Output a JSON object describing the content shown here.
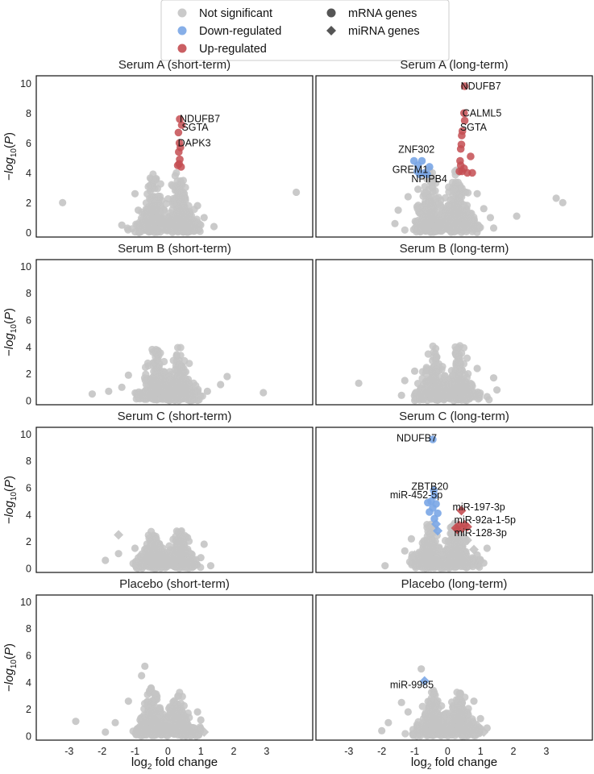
{
  "chart_data": {
    "type": "scatter",
    "description_kind": "volcano plot grid",
    "xlabel": "log2 fold change",
    "ylabel": "−log10(P)",
    "xlim": [
      -4,
      4.4
    ],
    "ylim": [
      -0.3,
      10.5
    ],
    "xticks": [
      -3,
      -2,
      -1,
      0,
      1,
      2,
      3
    ],
    "yticks": [
      0,
      2,
      4,
      6,
      8,
      10
    ],
    "colors": {
      "not_significant": "#c4c4c4",
      "down": "#7aa6e6",
      "up": "#c44e52"
    },
    "legend": {
      "placement": "top-center",
      "entries": [
        {
          "label": "Not significant",
          "kind": "color",
          "color": "#c4c4c4"
        },
        {
          "label": "Down-regulated",
          "kind": "color",
          "color": "#7aa6e6"
        },
        {
          "label": "Up-regulated",
          "kind": "color",
          "color": "#c44e52"
        },
        {
          "label": "mRNA genes",
          "kind": "marker",
          "marker": "circle"
        },
        {
          "label": "miRNA genes",
          "kind": "marker",
          "marker": "diamond"
        }
      ]
    },
    "panels": [
      {
        "title": "Serum A (short-term)",
        "cloud": {
          "left_center": -0.45,
          "right_center": 0.35,
          "ymax": 4.0,
          "spread": 0.8
        },
        "outliers": [
          [
            -3.2,
            2.0
          ],
          [
            -1.0,
            2.6
          ],
          [
            -0.9,
            1.5
          ],
          [
            3.9,
            2.7
          ],
          [
            1.1,
            1.0
          ],
          [
            -1.4,
            0.5
          ],
          [
            0.9,
            1.8
          ],
          [
            1.4,
            0.4
          ],
          [
            -0.6,
            0.2
          ],
          [
            0.6,
            0.3
          ]
        ],
        "up": [
          [
            0.36,
            7.6
          ],
          [
            0.42,
            7.2
          ],
          [
            0.32,
            6.7
          ],
          [
            0.35,
            6.0
          ],
          [
            0.38,
            5.7
          ],
          [
            0.33,
            5.4
          ],
          [
            0.36,
            4.9
          ],
          [
            0.34,
            4.6
          ],
          [
            0.4,
            4.4
          ],
          [
            0.3,
            4.5
          ]
        ],
        "down": [],
        "labels": [
          {
            "text": "NDUFB7",
            "x": 0.36,
            "y": 7.6
          },
          {
            "text": "SGTA",
            "x": 0.42,
            "y": 7.05
          },
          {
            "text": "DAPK3",
            "x": 0.3,
            "y": 6.0
          }
        ]
      },
      {
        "title": "Serum A (long-term)",
        "cloud": {
          "left_center": -0.55,
          "right_center": 0.3,
          "ymax": 4.1,
          "spread": 0.85
        },
        "outliers": [
          [
            3.3,
            2.3
          ],
          [
            3.5,
            2.0
          ],
          [
            2.1,
            1.1
          ],
          [
            -1.5,
            1.5
          ],
          [
            -1.6,
            0.6
          ],
          [
            1.1,
            1.6
          ],
          [
            1.3,
            1.0
          ],
          [
            -1.2,
            2.4
          ],
          [
            -0.9,
            2.9
          ],
          [
            0.9,
            2.6
          ],
          [
            1.4,
            0.3
          ]
        ],
        "up": [
          [
            0.52,
            9.8
          ],
          [
            0.5,
            8.0
          ],
          [
            0.52,
            7.5
          ],
          [
            0.45,
            6.8
          ],
          [
            0.43,
            6.5
          ],
          [
            0.42,
            5.9
          ],
          [
            0.4,
            5.6
          ],
          [
            0.7,
            5.1
          ],
          [
            0.38,
            4.8
          ],
          [
            0.4,
            4.5
          ],
          [
            0.5,
            4.3
          ],
          [
            0.36,
            4.1
          ],
          [
            0.6,
            4.0
          ],
          [
            0.75,
            4.0
          ],
          [
            0.44,
            4.1
          ]
        ],
        "down": [
          [
            -1.02,
            4.8
          ],
          [
            -0.78,
            4.8
          ],
          [
            -0.55,
            4.4
          ],
          [
            -0.9,
            4.5
          ],
          [
            -0.92,
            4.1
          ],
          [
            -0.7,
            4.0
          ],
          [
            -0.62,
            3.9
          ],
          [
            -0.85,
            3.9
          ]
        ],
        "labels": [
          {
            "text": "NDUFB7",
            "x": 0.4,
            "y": 9.8
          },
          {
            "text": "CALML5",
            "x": 0.45,
            "y": 8.0
          },
          {
            "text": "SGTA",
            "x": 0.38,
            "y": 7.05
          },
          {
            "text": "ZNF302",
            "x": -1.5,
            "y": 5.55
          },
          {
            "text": "GREM1",
            "x": -1.68,
            "y": 4.2
          },
          {
            "text": "NPIPB4",
            "x": -1.1,
            "y": 3.6
          }
        ]
      },
      {
        "title": "Serum B (short-term)",
        "cloud": {
          "left_center": -0.35,
          "right_center": 0.35,
          "ymax": 4.0,
          "spread": 0.8
        },
        "outliers": [
          [
            -1.8,
            0.7
          ],
          [
            -2.3,
            0.5
          ],
          [
            1.8,
            1.8
          ],
          [
            1.6,
            1.2
          ],
          [
            2.9,
            0.6
          ],
          [
            -1.4,
            1.0
          ],
          [
            -1.2,
            1.9
          ],
          [
            1.2,
            0.7
          ],
          [
            -0.9,
            0.2
          ]
        ],
        "up": [],
        "down": [],
        "labels": []
      },
      {
        "title": "Serum B (long-term)",
        "cloud": {
          "left_center": -0.4,
          "right_center": 0.35,
          "ymax": 4.0,
          "spread": 0.85
        },
        "outliers": [
          [
            -2.7,
            1.3
          ],
          [
            1.5,
            0.8
          ],
          [
            1.4,
            1.7
          ],
          [
            -1.3,
            1.5
          ],
          [
            -1.0,
            2.2
          ],
          [
            -1.4,
            0.4
          ],
          [
            1.2,
            0.3
          ],
          [
            0.9,
            2.4
          ]
        ],
        "up": [],
        "down": [],
        "labels": []
      },
      {
        "title": "Serum C (short-term)",
        "cloud": {
          "left_center": -0.4,
          "right_center": 0.35,
          "ymax": 2.9,
          "spread": 0.8
        },
        "outliers": [
          [
            -1.9,
            0.6
          ],
          [
            -1.5,
            1.1
          ],
          [
            1.1,
            1.8
          ],
          [
            1.0,
            0.8
          ],
          [
            -1.0,
            1.5
          ],
          [
            1.3,
            0.2
          ],
          [
            -0.8,
            0.3
          ]
        ],
        "miRNA_ns": [
          [
            -1.5,
            2.5
          ]
        ],
        "up": [],
        "down": [],
        "labels": []
      },
      {
        "title": "Serum C (long-term)",
        "cloud": {
          "left_center": -0.55,
          "right_center": 0.25,
          "ymax": 3.3,
          "spread": 0.8
        },
        "outliers": [
          [
            -1.9,
            0.2
          ],
          [
            -1.3,
            1.3
          ],
          [
            1.0,
            0.6
          ],
          [
            1.2,
            1.5
          ],
          [
            -1.1,
            2.2
          ],
          [
            0.9,
            1.0
          ],
          [
            0.5,
            2.3
          ],
          [
            1.1,
            0.4
          ]
        ],
        "miRNA_ns": [
          [
            0.6,
            2.1
          ],
          [
            -1.0,
            1.0
          ],
          [
            0.8,
            1.4
          ]
        ],
        "up": [],
        "up_miRNA": [
          [
            0.42,
            4.3
          ],
          [
            0.35,
            3.2
          ],
          [
            0.45,
            3.0
          ],
          [
            0.52,
            3.25
          ],
          [
            0.3,
            2.9
          ],
          [
            0.6,
            3.1
          ],
          [
            0.25,
            3.0
          ]
        ],
        "down": [
          [
            -0.45,
            9.6
          ],
          [
            -0.42,
            5.8
          ],
          [
            -0.4,
            5.4
          ],
          [
            -0.5,
            5.0
          ],
          [
            -0.6,
            4.9
          ],
          [
            -0.35,
            4.8
          ],
          [
            -0.45,
            4.5
          ],
          [
            -0.55,
            4.2
          ],
          [
            -0.3,
            4.1
          ],
          [
            -0.4,
            3.7
          ]
        ],
        "down_miRNA": [
          [
            -0.35,
            3.3
          ],
          [
            -0.3,
            2.8
          ]
        ],
        "labels": [
          {
            "text": "NDUFB7",
            "x": -1.55,
            "y": 9.7
          },
          {
            "text": "ZBTB20",
            "x": -1.1,
            "y": 6.1
          },
          {
            "text": "miR-452-5p",
            "x": -1.75,
            "y": 5.45
          },
          {
            "text": "miR-197-3p",
            "x": 0.15,
            "y": 4.55
          },
          {
            "text": "miR-92a-1-5p",
            "x": 0.2,
            "y": 3.6
          },
          {
            "text": "miR-128-3p",
            "x": 0.2,
            "y": 2.65
          }
        ]
      },
      {
        "title": "Placebo (short-term)",
        "cloud": {
          "left_center": -0.5,
          "right_center": 0.3,
          "ymax": 3.6,
          "spread": 0.85
        },
        "outliers": [
          [
            -2.8,
            1.1
          ],
          [
            -0.7,
            5.2
          ],
          [
            -0.8,
            4.5
          ],
          [
            1.0,
            1.2
          ],
          [
            0.8,
            0.6
          ],
          [
            -1.6,
            1.0
          ],
          [
            -1.2,
            2.6
          ],
          [
            0.9,
            1.8
          ],
          [
            -1.9,
            0.3
          ]
        ],
        "miRNA_ns": [
          [
            1.1,
            0.3
          ]
        ],
        "up": [],
        "down": [],
        "labels": []
      },
      {
        "title": "Placebo (long-term)",
        "cloud": {
          "left_center": -0.45,
          "right_center": 0.35,
          "ymax": 3.3,
          "spread": 0.9
        },
        "outliers": [
          [
            -1.8,
            1.0
          ],
          [
            -2.0,
            0.4
          ],
          [
            -0.8,
            5.0
          ],
          [
            1.0,
            1.3
          ],
          [
            1.2,
            0.6
          ],
          [
            -1.4,
            2.5
          ],
          [
            0.8,
            2.6
          ],
          [
            -1.2,
            1.8
          ]
        ],
        "miRNA_ns": [
          [
            1.1,
            0.3
          ],
          [
            0.9,
            0.8
          ]
        ],
        "up": [],
        "down_miRNA": [
          [
            -0.7,
            4.1
          ]
        ],
        "down": [],
        "labels": [
          {
            "text": "miR-9985",
            "x": -1.75,
            "y": 3.8
          }
        ]
      }
    ]
  }
}
